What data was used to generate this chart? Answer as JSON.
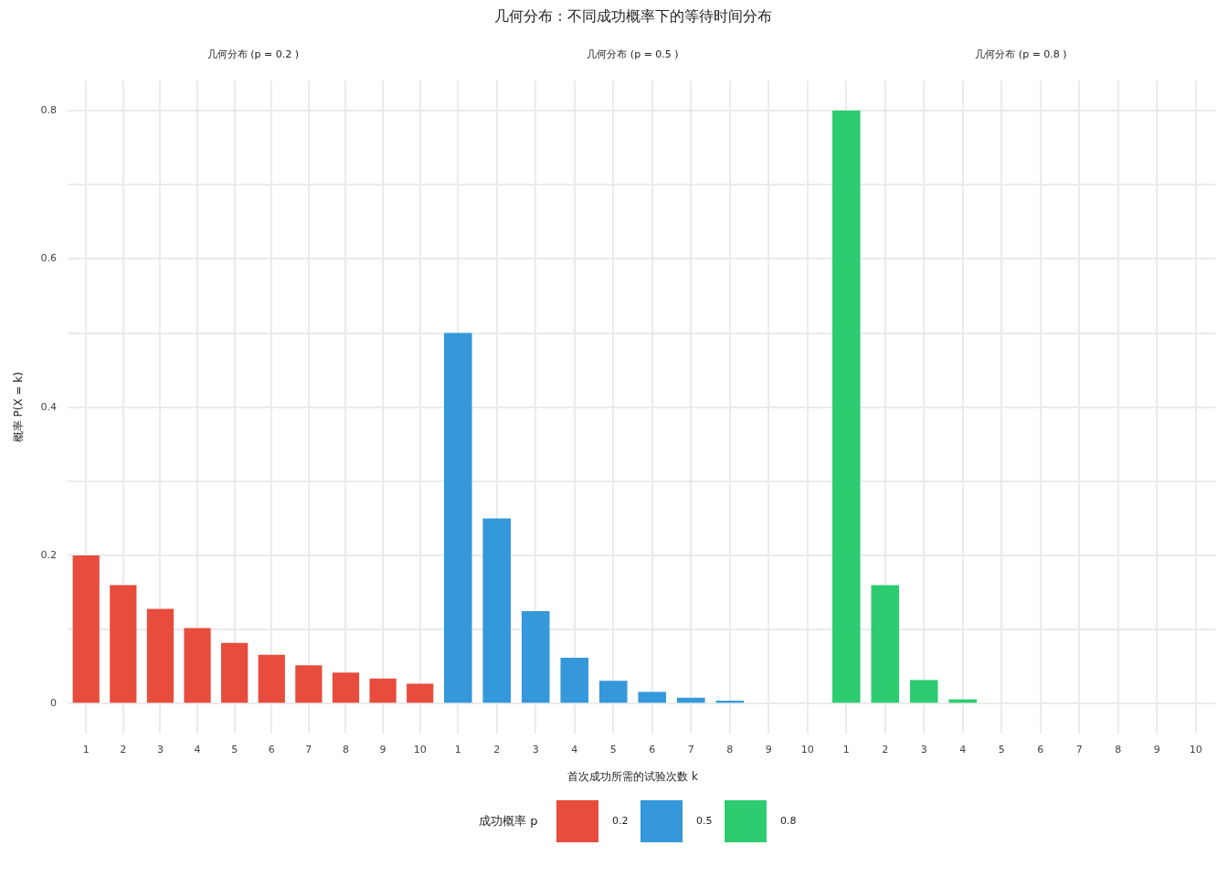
{
  "chart_data": [
    {
      "type": "bar",
      "subtitle": "几何分布 (p = 0.2 )",
      "ylabel": "概率 P(X = k)",
      "legend": "bottom",
      "categories": [
        "1",
        "2",
        "3",
        "4",
        "5",
        "6",
        "7",
        "8",
        "9",
        "10"
      ],
      "series": [
        {
          "name": "0.2",
          "color": "#e74c3c",
          "values": [
            0.2,
            0.16,
            0.128,
            0.102,
            0.082,
            0.066,
            0.052,
            0.042,
            0.034,
            0.027
          ]
        }
      ],
      "ylim": [
        -0.04,
        0.84
      ],
      "yticks": [
        0,
        {
          "value": 0.1,
          "label": null
        },
        0.2,
        {
          "value": 0.3,
          "label": null
        },
        0.4,
        {
          "value": 0.5,
          "label": null
        },
        0.6,
        {
          "value": 0.7,
          "label": null
        },
        0.8
      ],
      "grid": true
    },
    {
      "type": "bar",
      "title": "几何分布：不同成功概率下的等待时间分布",
      "subtitle": "几何分布 (p = 0.5 )",
      "xlabel": "首次成功所需的试验次数 k",
      "legend_title": "成功概率 p",
      "legend": "bottom",
      "categories": [
        "1",
        "2",
        "3",
        "4",
        "5",
        "6",
        "7",
        "8",
        "9",
        "10"
      ],
      "series": [
        {
          "name": "0.5",
          "color": "#3498db",
          "values": [
            0.5,
            0.25,
            0.125,
            0.062,
            0.031,
            0.016,
            0.008,
            0.004,
            null,
            null
          ]
        }
      ],
      "ylim": [
        -0.04,
        0.84
      ],
      "yticks": [
        0,
        {
          "value": 0.1,
          "label": null
        },
        0.2,
        {
          "value": 0.3,
          "label": null
        },
        0.4,
        {
          "value": 0.5,
          "label": null
        },
        0.6,
        {
          "value": 0.7,
          "label": null
        },
        0.8
      ],
      "grid": true,
      "tick_labels": "x"
    },
    {
      "type": "bar",
      "subtitle": "几何分布 (p = 0.8 )",
      "legend": "bottom",
      "categories": [
        "1",
        "2",
        "3",
        "4",
        "5",
        "6",
        "7",
        "8",
        "9",
        "10"
      ],
      "series": [
        {
          "name": "0.8",
          "color": "#2ecc71",
          "values": [
            0.8,
            0.16,
            0.032,
            0.006,
            null,
            0,
            0,
            0,
            0,
            0
          ]
        }
      ],
      "ylim": [
        -0.04,
        0.84
      ],
      "yticks": [
        0,
        {
          "value": 0.1,
          "label": null
        },
        0.2,
        {
          "value": 0.3,
          "label": null
        },
        0.4,
        {
          "value": 0.5,
          "label": null
        },
        0.6,
        {
          "value": 0.7,
          "label": null
        },
        0.8
      ],
      "grid": true,
      "tick_labels": "x"
    }
  ]
}
